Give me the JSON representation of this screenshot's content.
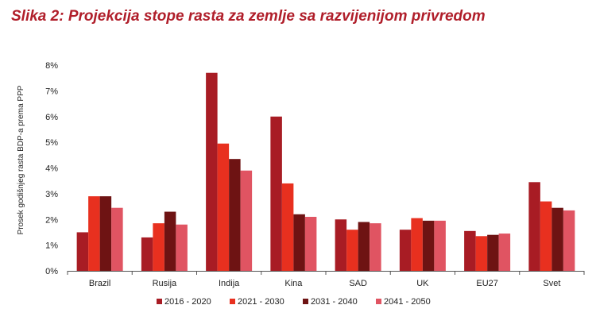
{
  "figure": {
    "title": "Slika 2: Projekcija stope rasta za zemlje sa razvijenijom privredom"
  },
  "chart_data": {
    "type": "bar",
    "title": "",
    "xlabel": "",
    "ylabel": "Prosek godišnjeg rasta BDP-a prema PPP",
    "ylim": [
      0,
      8
    ],
    "yticks": [
      "0%",
      "1%",
      "2%",
      "3%",
      "4%",
      "5%",
      "6%",
      "7%",
      "8%"
    ],
    "grid": false,
    "legend": "bottom",
    "categories": [
      "Brazil",
      "Rusija",
      "Indija",
      "Kina",
      "SAD",
      "UK",
      "EU27",
      "Svet"
    ],
    "series": [
      {
        "name": "2016 - 2020",
        "color": "#a81c24",
        "values": [
          1.5,
          1.3,
          7.7,
          6.0,
          2.0,
          1.6,
          1.55,
          3.45
        ]
      },
      {
        "name": "2021 - 2030",
        "color": "#e8301f",
        "values": [
          2.9,
          1.85,
          4.95,
          3.4,
          1.6,
          2.05,
          1.35,
          2.7
        ]
      },
      {
        "name": "2031 - 2040",
        "color": "#6e1313",
        "values": [
          2.9,
          2.3,
          4.35,
          2.2,
          1.9,
          1.95,
          1.4,
          2.45
        ]
      },
      {
        "name": "2041 - 2050",
        "color": "#e05462",
        "values": [
          2.45,
          1.8,
          3.9,
          2.1,
          1.85,
          1.95,
          1.45,
          2.35
        ]
      }
    ]
  }
}
